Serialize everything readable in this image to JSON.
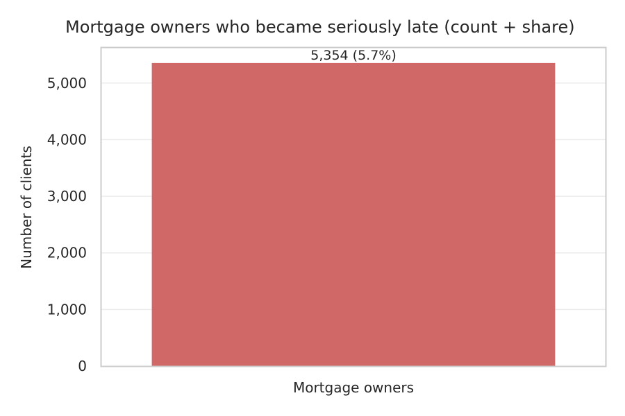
{
  "chart_data": {
    "type": "bar",
    "title": "Mortgage owners who became seriously late (count + share)",
    "xlabel": "",
    "ylabel": "Number of clients",
    "categories": [
      "Mortgage owners"
    ],
    "values": [
      5354
    ],
    "data_labels": [
      "5,354 (5.7%)"
    ],
    "yticks": [
      0,
      1000,
      2000,
      3000,
      4000,
      5000
    ],
    "ytick_labels": [
      "0",
      "1,000",
      "2,000",
      "3,000",
      "4,000",
      "5,000"
    ],
    "ylim": [
      0,
      5622
    ],
    "grid": true,
    "legend": "none",
    "colors": {
      "bar": "#d16868",
      "grid": "#ebebeb",
      "axes": "#cccccc",
      "text": "#262626"
    }
  }
}
